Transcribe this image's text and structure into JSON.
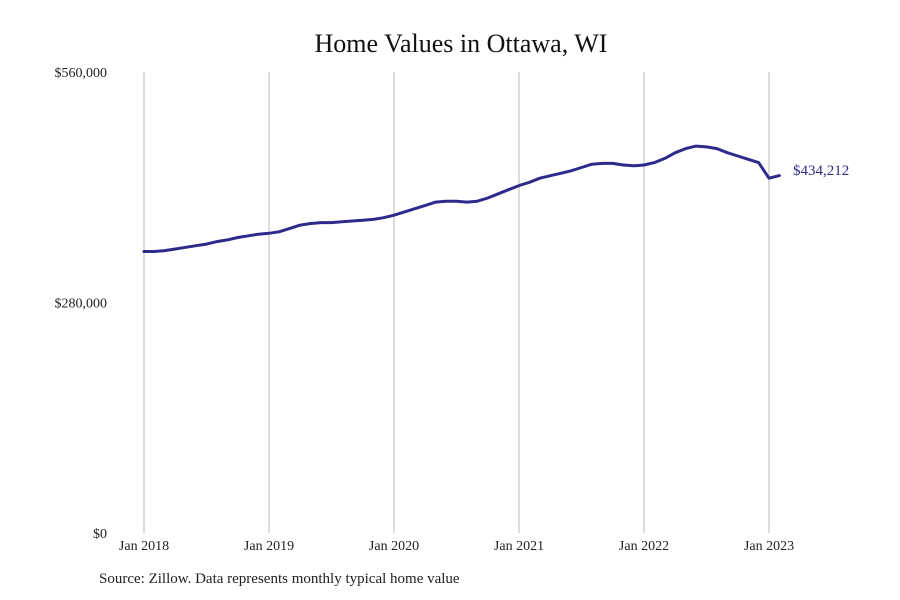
{
  "chart_data": {
    "type": "line",
    "title": "Home Values in Ottawa, WI",
    "xlabel": "",
    "ylabel": "",
    "x_tick_labels": [
      "Jan 2018",
      "Jan 2019",
      "Jan 2020",
      "Jan 2021",
      "Jan 2022",
      "Jan 2023"
    ],
    "y_tick_labels": [
      "$560,000",
      "$280,000",
      "$0"
    ],
    "ylim": [
      0,
      560000
    ],
    "xlim": [
      "2018-01",
      "2023-02"
    ],
    "grid": "vertical at each January",
    "legend": "none",
    "series": [
      {
        "color": "#2e2a8c",
        "end_label": "$434,212",
        "x": [
          "2018-01",
          "2018-02",
          "2018-03",
          "2018-04",
          "2018-05",
          "2018-06",
          "2018-07",
          "2018-08",
          "2018-09",
          "2018-10",
          "2018-11",
          "2018-12",
          "2019-01",
          "2019-02",
          "2019-03",
          "2019-04",
          "2019-05",
          "2019-06",
          "2019-07",
          "2019-08",
          "2019-09",
          "2019-10",
          "2019-11",
          "2019-12",
          "2020-01",
          "2020-02",
          "2020-03",
          "2020-04",
          "2020-05",
          "2020-06",
          "2020-07",
          "2020-08",
          "2020-09",
          "2020-10",
          "2020-11",
          "2020-12",
          "2021-01",
          "2021-02",
          "2021-03",
          "2021-04",
          "2021-05",
          "2021-06",
          "2021-07",
          "2021-08",
          "2021-09",
          "2021-10",
          "2021-11",
          "2021-12",
          "2022-01",
          "2022-02",
          "2022-03",
          "2022-04",
          "2022-05",
          "2022-06",
          "2022-07",
          "2022-08",
          "2022-09",
          "2022-10",
          "2022-11",
          "2022-12",
          "2023-01",
          "2023-02"
        ],
        "y": [
          342000,
          342000,
          343000,
          345000,
          347000,
          349000,
          351000,
          354000,
          356000,
          359000,
          361000,
          363000,
          364000,
          366000,
          370000,
          374000,
          376000,
          377000,
          377000,
          378000,
          379000,
          380000,
          381000,
          383000,
          386000,
          390000,
          394000,
          398000,
          402000,
          403000,
          403000,
          402000,
          403000,
          407000,
          412000,
          417000,
          422000,
          426000,
          431000,
          434000,
          437000,
          440000,
          444000,
          448000,
          449000,
          449000,
          447000,
          446000,
          447000,
          450000,
          455000,
          462000,
          467000,
          470000,
          469000,
          467000,
          462000,
          458000,
          454000,
          450000,
          431000,
          434212
        ]
      }
    ]
  },
  "footer": {
    "source": "Source: Zillow. Data represents monthly typical home value"
  }
}
